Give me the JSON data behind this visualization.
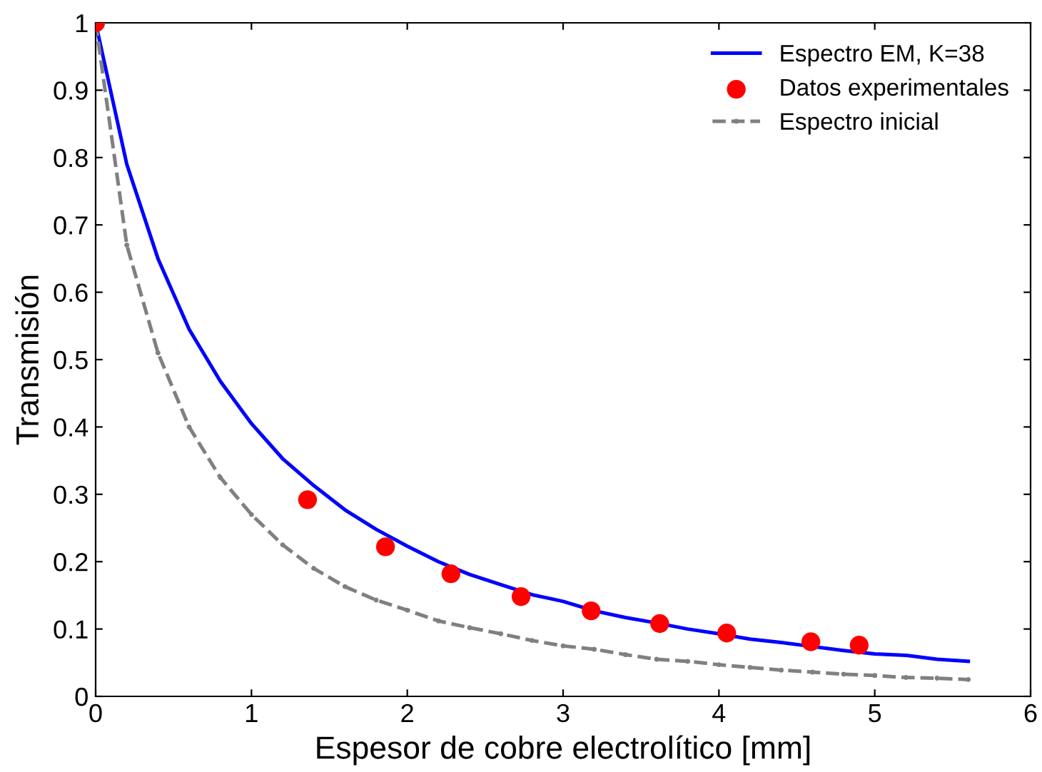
{
  "chart_data": {
    "type": "line",
    "xlabel": "Espesor de cobre electrolítico [mm]",
    "ylabel": "Transmisión",
    "xlim": [
      0,
      6
    ],
    "xticks": [
      0,
      1,
      2,
      3,
      4,
      5,
      6
    ],
    "ylim": [
      0,
      1
    ],
    "yticks": [
      0,
      0.1,
      0.2,
      0.3,
      0.4,
      0.5,
      0.6,
      0.7,
      0.8,
      0.9,
      1
    ],
    "grid": false,
    "legend": "top right",
    "series": [
      {
        "name": "Espectro EM, K=38",
        "color": "#0000ff",
        "line_style": "solid",
        "marker": "none",
        "x": [
          0,
          0.2,
          0.4,
          0.6,
          0.8,
          1.0,
          1.2,
          1.4,
          1.6,
          1.8,
          2.0,
          2.2,
          2.4,
          2.6,
          2.8,
          3.0,
          3.2,
          3.4,
          3.6,
          3.8,
          4.0,
          4.2,
          4.4,
          4.6,
          4.8,
          5.0,
          5.2,
          5.4,
          5.6
        ],
        "values": [
          1,
          0.79,
          0.65,
          0.545,
          0.468,
          0.405,
          0.353,
          0.313,
          0.277,
          0.248,
          0.223,
          0.2,
          0.181,
          0.166,
          0.151,
          0.141,
          0.127,
          0.117,
          0.109,
          0.1,
          0.093,
          0.085,
          0.08,
          0.074,
          0.068,
          0.063,
          0.061,
          0.055,
          0.052
        ]
      },
      {
        "name": "Datos experimentales",
        "type": "scatter",
        "color": "#ff0000",
        "marker": "circle",
        "x": [
          0,
          1.36,
          1.86,
          2.28,
          2.73,
          3.18,
          3.62,
          4.05,
          4.59,
          4.9
        ],
        "values": [
          1,
          0.292,
          0.222,
          0.182,
          0.148,
          0.127,
          0.108,
          0.094,
          0.081,
          0.076
        ]
      },
      {
        "name": "Espectro inicial",
        "color": "#808080",
        "line_style": "dashed",
        "marker": "circle",
        "x": [
          0,
          0.2,
          0.4,
          0.6,
          0.8,
          1.0,
          1.2,
          1.4,
          1.6,
          1.8,
          2.0,
          2.2,
          2.4,
          2.6,
          2.8,
          3.0,
          3.2,
          3.4,
          3.6,
          3.8,
          4.0,
          4.2,
          4.4,
          4.6,
          4.8,
          5.0,
          5.2,
          5.4,
          5.6
        ],
        "values": [
          1,
          0.67,
          0.51,
          0.4,
          0.325,
          0.27,
          0.225,
          0.19,
          0.163,
          0.143,
          0.128,
          0.112,
          0.102,
          0.093,
          0.083,
          0.075,
          0.07,
          0.062,
          0.055,
          0.052,
          0.047,
          0.043,
          0.039,
          0.036,
          0.033,
          0.031,
          0.028,
          0.027,
          0.025
        ]
      }
    ]
  }
}
